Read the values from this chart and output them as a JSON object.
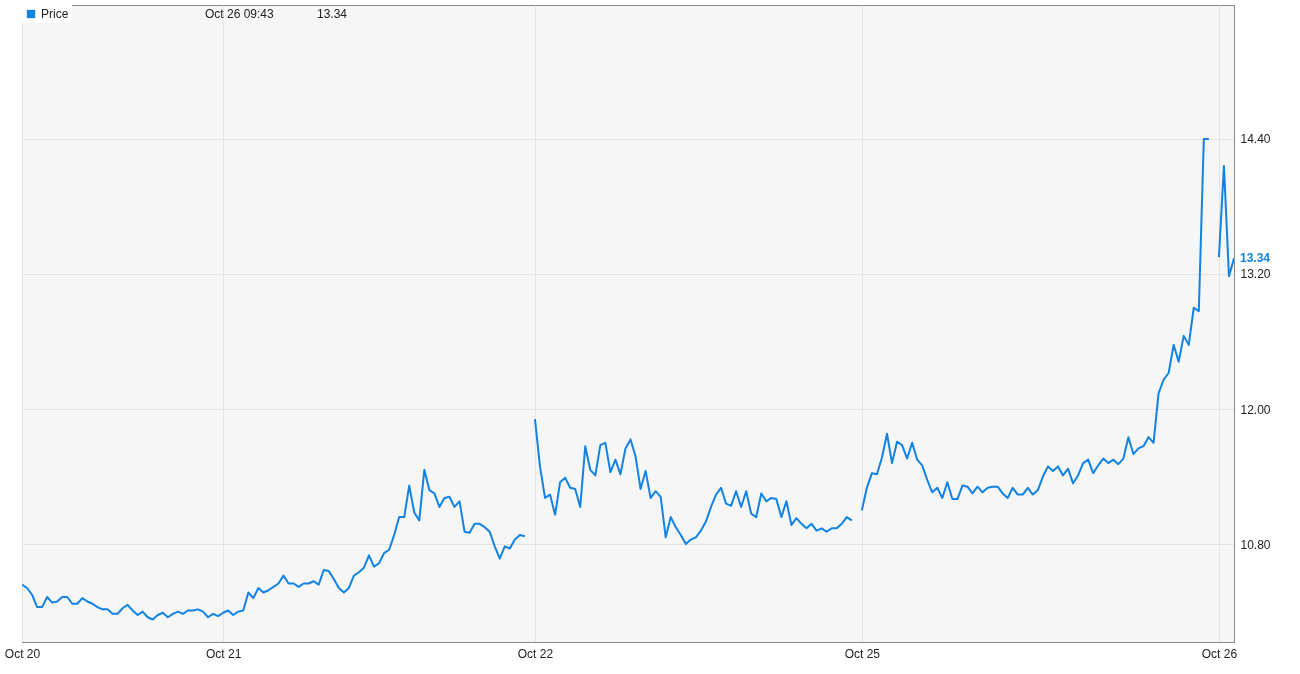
{
  "chart_data": {
    "type": "line",
    "ylim": [
      9.93,
      15.59
    ],
    "categories": [
      "Oct 20",
      null,
      null,
      null,
      null,
      null,
      null,
      null,
      null,
      null,
      null,
      null,
      null,
      null,
      null,
      null,
      null,
      null,
      null,
      null,
      null,
      null,
      null,
      null,
      null,
      null,
      null,
      null,
      null,
      null,
      null,
      null,
      null,
      null,
      null,
      null,
      null,
      null,
      null,
      null,
      "Oct 21",
      null,
      null,
      null,
      null,
      null,
      null,
      null,
      null,
      null,
      null,
      null,
      null,
      null,
      null,
      null,
      null,
      null,
      null,
      null,
      null,
      null,
      null,
      null,
      null,
      null,
      null,
      null,
      null,
      null,
      null,
      null,
      null,
      null,
      null,
      null,
      null,
      null,
      null,
      null,
      null,
      null,
      null,
      null,
      null,
      null,
      null,
      null,
      null,
      null,
      null,
      null,
      null,
      null,
      null,
      null,
      null,
      null,
      null,
      null,
      null,
      null,
      "Oct 22",
      null,
      null,
      null,
      null,
      null,
      null,
      null,
      null,
      null,
      null,
      null,
      null,
      null,
      null,
      null,
      null,
      null,
      null,
      null,
      null,
      null,
      null,
      null,
      null,
      null,
      null,
      null,
      null,
      null,
      null,
      null,
      null,
      null,
      null,
      null,
      null,
      null,
      null,
      null,
      null,
      null,
      null,
      null,
      null,
      null,
      null,
      null,
      null,
      null,
      null,
      null,
      null,
      null,
      null,
      null,
      null,
      null,
      null,
      null,
      null,
      null,
      null,
      null,
      null,
      "Oct 25",
      null,
      null,
      null,
      null,
      null,
      null,
      null,
      null,
      null,
      null,
      null,
      null,
      null,
      null,
      null,
      null,
      null,
      null,
      null,
      null,
      null,
      null,
      null,
      null,
      null,
      null,
      null,
      null,
      null,
      null,
      null,
      null,
      null,
      null,
      null,
      null,
      null,
      null,
      null,
      null,
      null,
      null,
      null,
      null,
      null,
      null,
      null,
      null,
      null,
      null,
      null,
      null,
      null,
      null,
      null,
      null,
      null,
      null,
      null,
      null,
      null,
      null,
      null,
      null,
      null,
      null,
      null,
      null,
      null,
      null,
      "Oct 26",
      null,
      null,
      null
    ],
    "yticks": [
      {
        "value": 10.8,
        "label": "10.80"
      },
      {
        "value": 12,
        "label": "12.00"
      },
      {
        "value": 13.2,
        "label": "13.20"
      },
      {
        "value": 14.4,
        "label": "14.40"
      }
    ],
    "grid": true,
    "legend": "top left",
    "annotations": [
      "Oct 26 09:43",
      "13.34",
      "13.34"
    ],
    "series": [
      {
        "name": "Price",
        "color": "#1283e3",
        "values": [
          10.44,
          10.41,
          10.35,
          10.24,
          10.24,
          10.33,
          10.28,
          10.29,
          10.33,
          10.33,
          10.27,
          10.27,
          10.32,
          10.29,
          10.27,
          10.24,
          10.22,
          10.22,
          10.18,
          10.18,
          10.23,
          10.26,
          10.21,
          10.17,
          10.2,
          10.15,
          10.13,
          10.17,
          10.19,
          10.15,
          10.18,
          10.2,
          10.18,
          10.21,
          10.21,
          10.22,
          10.2,
          10.15,
          10.18,
          10.16,
          10.19,
          10.21,
          10.17,
          10.2,
          10.21,
          10.37,
          10.32,
          10.41,
          10.37,
          10.39,
          10.42,
          10.45,
          10.52,
          10.45,
          10.45,
          10.42,
          10.45,
          10.45,
          10.47,
          10.44,
          10.57,
          10.56,
          10.49,
          10.41,
          10.37,
          10.41,
          10.52,
          10.55,
          10.59,
          10.7,
          10.6,
          10.63,
          10.72,
          10.75,
          10.88,
          11.04,
          11.04,
          11.32,
          11.08,
          11.01,
          11.46,
          11.28,
          11.25,
          11.13,
          11.21,
          11.22,
          11.13,
          11.18,
          10.91,
          10.9,
          10.98,
          10.98,
          10.95,
          10.91,
          10.78,
          10.67,
          10.78,
          10.76,
          10.84,
          10.88,
          10.87,
          null,
          11.91,
          11.49,
          11.21,
          11.24,
          11.06,
          11.35,
          11.39,
          11.3,
          11.29,
          11.13,
          11.67,
          11.46,
          11.41,
          11.68,
          11.7,
          11.44,
          11.55,
          11.42,
          11.65,
          11.73,
          11.58,
          11.29,
          11.45,
          11.21,
          11.27,
          11.22,
          10.86,
          11.04,
          10.95,
          10.88,
          10.8,
          10.84,
          10.86,
          10.92,
          11.0,
          11.13,
          11.24,
          11.3,
          11.16,
          11.14,
          11.27,
          11.13,
          11.27,
          11.07,
          11.04,
          11.25,
          11.18,
          11.21,
          11.2,
          11.04,
          11.18,
          10.97,
          11.03,
          10.98,
          10.94,
          10.98,
          10.92,
          10.94,
          10.91,
          10.94,
          10.94,
          10.98,
          11.04,
          11.01,
          null,
          11.1,
          11.3,
          11.43,
          11.42,
          11.57,
          11.78,
          11.52,
          11.71,
          11.68,
          11.56,
          11.7,
          11.55,
          11.5,
          11.37,
          11.26,
          11.3,
          11.21,
          11.35,
          11.2,
          11.2,
          11.32,
          11.31,
          11.25,
          11.31,
          11.26,
          11.3,
          11.31,
          11.31,
          11.25,
          11.21,
          11.3,
          11.24,
          11.24,
          11.3,
          11.24,
          11.28,
          11.4,
          11.49,
          11.45,
          11.49,
          11.41,
          11.47,
          11.34,
          11.41,
          11.52,
          11.55,
          11.43,
          11.5,
          11.56,
          11.52,
          11.55,
          11.51,
          11.56,
          11.75,
          11.6,
          11.65,
          11.67,
          11.75,
          11.7,
          12.14,
          12.26,
          12.32,
          12.57,
          12.42,
          12.65,
          12.57,
          12.9,
          12.87,
          14.4,
          14.4,
          null,
          13.35,
          14.16,
          13.18,
          13.34
        ]
      }
    ]
  }
}
